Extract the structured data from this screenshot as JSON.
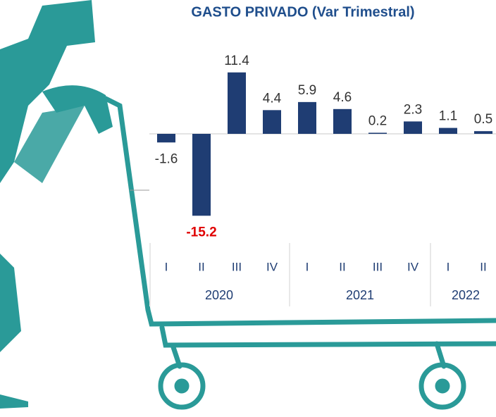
{
  "chart_data": {
    "type": "bar",
    "title": "GASTO PRIVADO (Var Trimestral)",
    "categories": [
      "I",
      "II",
      "III",
      "IV",
      "I",
      "II",
      "III",
      "IV",
      "I",
      "II"
    ],
    "groups": [
      {
        "label": "2020",
        "count": 4
      },
      {
        "label": "2021",
        "count": 4
      },
      {
        "label": "2022",
        "count": 2
      }
    ],
    "values": [
      -1.6,
      -15.2,
      11.4,
      4.4,
      5.9,
      4.6,
      0.2,
      2.3,
      1.1,
      0.5
    ],
    "color": "#1f3d73",
    "value_label_colors": [
      "#333333",
      "#e00000",
      "#333333",
      "#333333",
      "#333333",
      "#333333",
      "#333333",
      "#333333",
      "#333333",
      "#333333"
    ]
  }
}
